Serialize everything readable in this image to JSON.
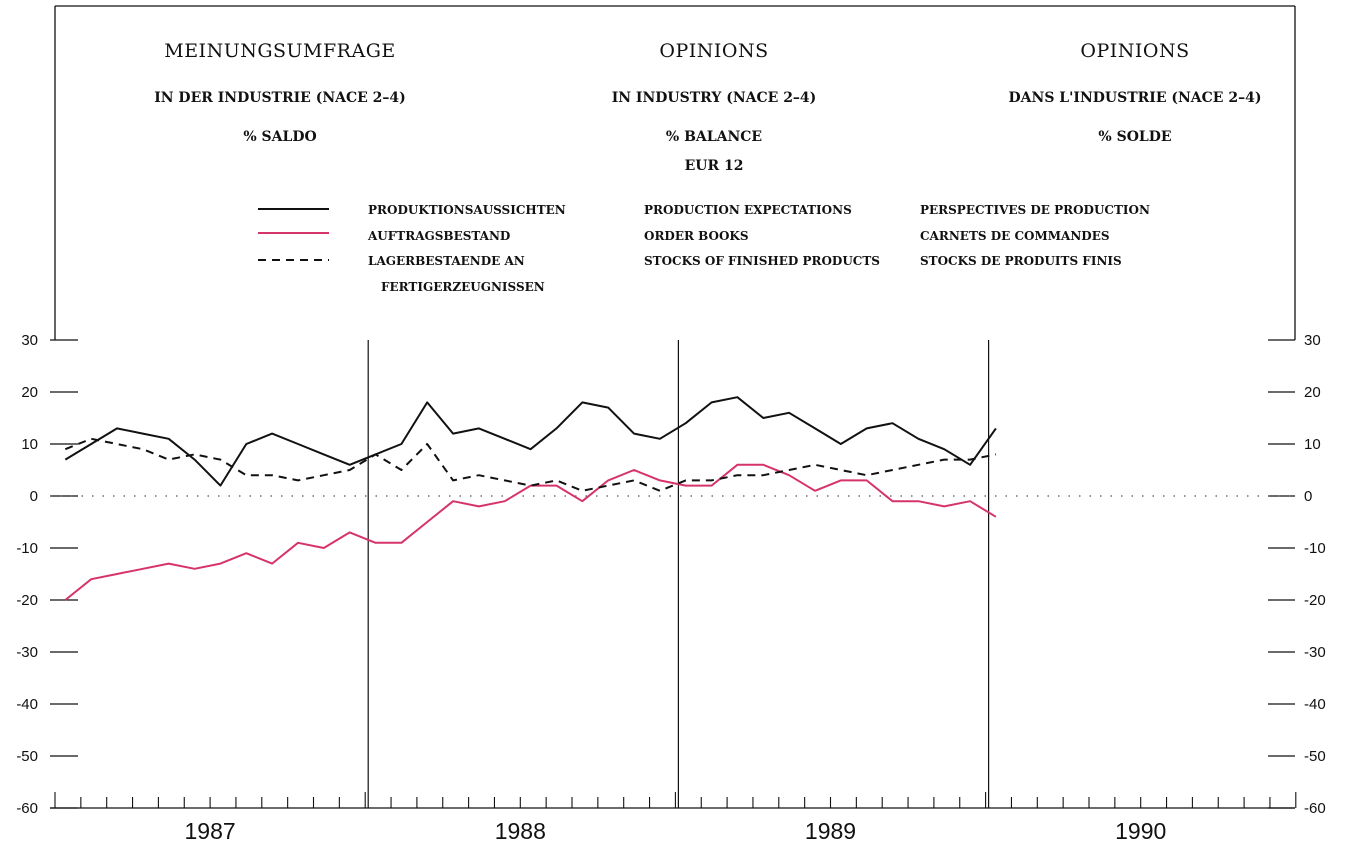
{
  "headers": {
    "de": {
      "title": "MEINUNGSUMFRAGE",
      "subtitle": "IN DER INDUSTRIE (NACE 2–4)",
      "unit": "% SALDO"
    },
    "en": {
      "title": "OPINIONS",
      "subtitle": "IN INDUSTRY (NACE 2–4)",
      "unit": "% BALANCE",
      "region": "EUR 12"
    },
    "fr": {
      "title": "OPINIONS",
      "subtitle": "DANS L'INDUSTRIE (NACE 2–4)",
      "unit": "% SOLDE"
    }
  },
  "legend": [
    {
      "style": "solid",
      "color": "#111111",
      "de": "PRODUKTIONSAUSSICHTEN",
      "en": "PRODUCTION EXPECTATIONS",
      "fr": "PERSPECTIVES DE PRODUCTION"
    },
    {
      "style": "solid",
      "color": "#d6336c",
      "de": "AUFTRAGSBESTAND",
      "en": "ORDER BOOKS",
      "fr": "CARNETS DE COMMANDES"
    },
    {
      "style": "dashed",
      "color": "#111111",
      "de": "LAGERBESTAENDE AN",
      "de2": "FERTIGERZEUGNISSEN",
      "en": "STOCKS OF FINISHED PRODUCTS",
      "fr": "STOCKS DE PRODUITS FINIS"
    }
  ],
  "chart_data": {
    "type": "line",
    "x_unit": "months from Jan 1987",
    "years": [
      "1987",
      "1988",
      "1989",
      "1990"
    ],
    "ylim": [
      -60,
      30
    ],
    "yticks": [
      30,
      20,
      10,
      0,
      -10,
      -20,
      -30,
      -40,
      -50,
      -60
    ],
    "zero_line": true,
    "series": [
      {
        "name": "PRODUKTIONSAUSSICHTEN / PRODUCTION EXPECTATIONS / PERSPECTIVES DE PRODUCTION",
        "color": "#111111",
        "style": "solid",
        "values": [
          7,
          10,
          13,
          12,
          11,
          7,
          2,
          10,
          12,
          10,
          8,
          6,
          8,
          10,
          18,
          12,
          13,
          11,
          9,
          13,
          18,
          17,
          12,
          11,
          14,
          18,
          19,
          15,
          16,
          13,
          10,
          13,
          14,
          11,
          9,
          6,
          13
        ]
      },
      {
        "name": "AUFTRAGSBESTAND / ORDER BOOKS / CARNETS DE COMMANDES",
        "color": "#d6336c",
        "style": "solid",
        "values": [
          -20,
          -16,
          -15,
          -14,
          -13,
          -14,
          -13,
          -11,
          -13,
          -9,
          -10,
          -7,
          -9,
          -9,
          -5,
          -1,
          -2,
          -1,
          2,
          2,
          -1,
          3,
          5,
          3,
          2,
          2,
          6,
          6,
          4,
          1,
          3,
          3,
          -1,
          -1,
          -2,
          -1,
          -4
        ]
      },
      {
        "name": "LAGERBESTAENDE AN FERTIGERZEUGNISSEN / STOCKS OF FINISHED PRODUCTS / STOCKS DE PRODUITS FINIS",
        "color": "#111111",
        "style": "dashed",
        "values": [
          9,
          11,
          10,
          9,
          7,
          8,
          7,
          4,
          4,
          3,
          4,
          5,
          8,
          5,
          10,
          3,
          4,
          3,
          2,
          3,
          1,
          2,
          3,
          1,
          3,
          3,
          4,
          4,
          5,
          6,
          5,
          4,
          5,
          6,
          7,
          7,
          8
        ]
      }
    ]
  }
}
